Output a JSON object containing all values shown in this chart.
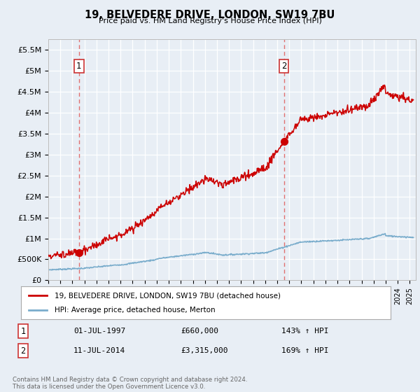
{
  "title": "19, BELVEDERE DRIVE, LONDON, SW19 7BU",
  "subtitle": "Price paid vs. HM Land Registry's House Price Index (HPI)",
  "ylim": [
    0,
    5750000
  ],
  "yticks": [
    0,
    500000,
    1000000,
    1500000,
    2000000,
    2500000,
    3000000,
    3500000,
    4000000,
    4500000,
    5000000,
    5500000
  ],
  "ytick_labels": [
    "£0",
    "£500K",
    "£1M",
    "£1.5M",
    "£2M",
    "£2.5M",
    "£3M",
    "£3.5M",
    "£4M",
    "£4.5M",
    "£5M",
    "£5.5M"
  ],
  "xlim_start": 1995.0,
  "xlim_end": 2025.5,
  "sale1_x": 1997.55,
  "sale1_y": 660000,
  "sale1_label": "1",
  "sale2_x": 2014.55,
  "sale2_y": 3315000,
  "sale2_label": "2",
  "line_color_red": "#cc0000",
  "line_color_blue": "#7aadcc",
  "dashed_color": "#e07070",
  "background_color": "#e8eef5",
  "grid_color": "#ffffff",
  "legend1_text": "19, BELVEDERE DRIVE, LONDON, SW19 7BU (detached house)",
  "legend2_text": "HPI: Average price, detached house, Merton",
  "annot1_date": "01-JUL-1997",
  "annot1_price": "£660,000",
  "annot1_hpi": "143% ↑ HPI",
  "annot2_date": "11-JUL-2014",
  "annot2_price": "£3,315,000",
  "annot2_hpi": "169% ↑ HPI",
  "footer": "Contains HM Land Registry data © Crown copyright and database right 2024.\nThis data is licensed under the Open Government Licence v3.0."
}
